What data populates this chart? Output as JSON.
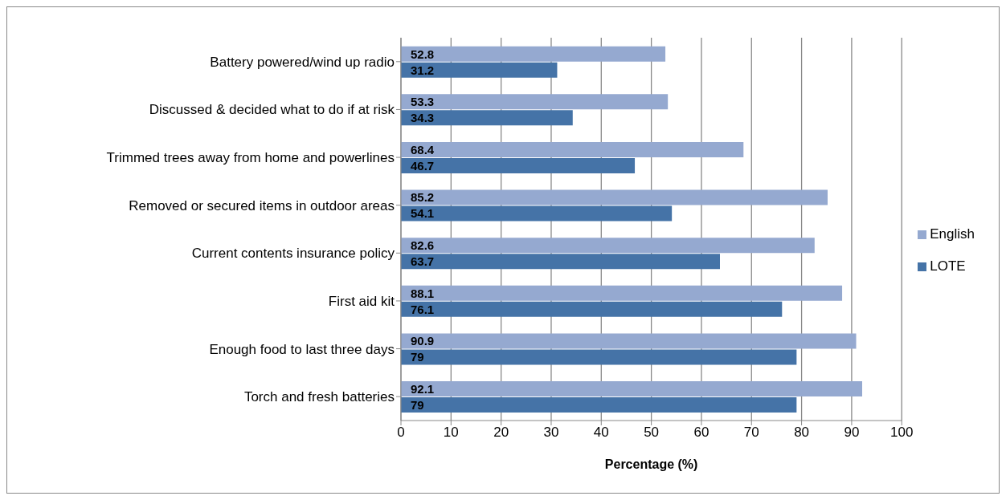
{
  "chart_data": {
    "type": "bar",
    "orientation": "horizontal",
    "xlabel": "Percentage (%)",
    "categories": [
      "Battery powered/wind up radio",
      "Discussed & decided what to do if at risk",
      "Trimmed trees away from home and powerlines",
      "Removed or secured items in outdoor areas",
      "Current contents insurance policy",
      "First aid kit",
      "Enough food to last three days",
      "Torch and fresh batteries"
    ],
    "series": [
      {
        "name": "English",
        "color": "#95a9d0",
        "values": [
          52.8,
          53.3,
          68.4,
          85.2,
          82.6,
          88.1,
          90.9,
          92.1
        ]
      },
      {
        "name": "LOTE",
        "color": "#4573a7",
        "values": [
          31.2,
          34.3,
          46.7,
          54.1,
          63.7,
          76.1,
          79,
          79
        ]
      }
    ],
    "xlim": [
      0,
      100
    ],
    "xticks": [
      0,
      10,
      20,
      30,
      40,
      50,
      60,
      70,
      80,
      90,
      100
    ],
    "grid": "x",
    "legend": "right",
    "data_labels": true
  }
}
